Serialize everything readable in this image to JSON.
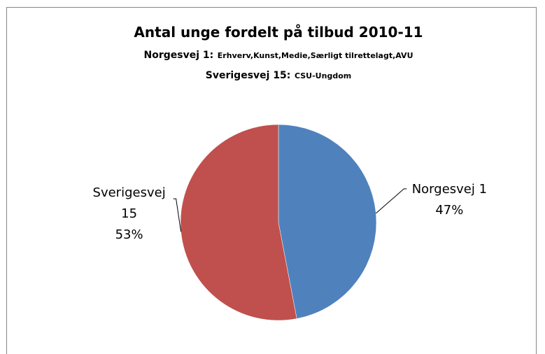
{
  "chart_data": {
    "type": "pie",
    "title": "Antal unge fordelt på tilbud 2010-11",
    "subtitle_lines": [
      {
        "label": "Norgesvej 1:",
        "detail": "Erhverv,Kunst,Medie,Særligt tilrettelagt,AVU"
      },
      {
        "label": "Sverigesvej 15:",
        "detail": "CSU-Ungdom"
      }
    ],
    "categories": [
      "Norgesvej 1",
      "Sverigesvej 15"
    ],
    "values": [
      47,
      53
    ],
    "value_labels": [
      "47%",
      "53%"
    ],
    "colors": [
      "#4f81bd",
      "#c0504d"
    ]
  }
}
